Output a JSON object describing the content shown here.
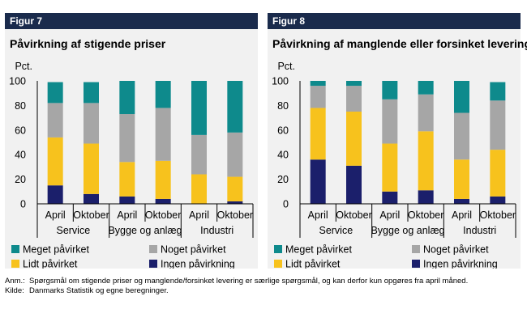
{
  "chart_data": [
    {
      "type": "bar",
      "stacked": true,
      "figure_label": "Figur 7",
      "title": "Påvirkning af stigende priser",
      "ylabel": "Pct.",
      "ylim": [
        0,
        100
      ],
      "yticks": [
        0,
        20,
        40,
        60,
        80,
        100
      ],
      "categories": [
        "April",
        "Oktober",
        "April",
        "Oktober",
        "April",
        "Oktober"
      ],
      "groups": [
        "Service",
        "Bygge og anlæg",
        "Industri"
      ],
      "series": [
        {
          "name": "Ingen påvirkning",
          "color": "#1b1f6b",
          "values": [
            15,
            8,
            6,
            4,
            0,
            2
          ]
        },
        {
          "name": "Lidt påvirket",
          "color": "#f7c21d",
          "values": [
            39,
            41,
            28,
            31,
            24,
            20
          ]
        },
        {
          "name": "Noget påvirket",
          "color": "#a6a6a6",
          "values": [
            28,
            33,
            39,
            43,
            32,
            36
          ]
        },
        {
          "name": "Meget påvirket",
          "color": "#0e8a8c",
          "values": [
            17,
            17,
            27,
            22,
            44,
            42
          ]
        }
      ],
      "legend": [
        "Meget påvirket",
        "Noget påvirket",
        "Lidt påvirket",
        "Ingen påvirkning"
      ]
    },
    {
      "type": "bar",
      "stacked": true,
      "figure_label": "Figur 8",
      "title": "Påvirkning af manglende eller forsinket levering",
      "ylabel": "Pct.",
      "ylim": [
        0,
        100
      ],
      "yticks": [
        0,
        20,
        40,
        60,
        80,
        100
      ],
      "categories": [
        "April",
        "Oktober",
        "April",
        "Oktober",
        "April",
        "Oktober"
      ],
      "groups": [
        "Service",
        "Bygge og anlæg",
        "Industri"
      ],
      "series": [
        {
          "name": "Ingen påvirkning",
          "color": "#1b1f6b",
          "values": [
            36,
            31,
            10,
            11,
            4,
            6
          ]
        },
        {
          "name": "Lidt påvirket",
          "color": "#f7c21d",
          "values": [
            42,
            44,
            39,
            48,
            32,
            38
          ]
        },
        {
          "name": "Noget påvirket",
          "color": "#a6a6a6",
          "values": [
            18,
            21,
            36,
            30,
            38,
            40
          ]
        },
        {
          "name": "Meget påvirket",
          "color": "#0e8a8c",
          "values": [
            4,
            4,
            15,
            11,
            26,
            15
          ]
        }
      ],
      "legend": [
        "Meget påvirket",
        "Noget påvirket",
        "Lidt påvirket",
        "Ingen påvirkning"
      ]
    }
  ],
  "notes": {
    "anm_label": "Anm.:",
    "anm_text": "Spørgsmål om stigende priser og manglende/forsinket levering er særlige spørgsmål, og kan derfor kun opgøres fra april måned.",
    "kilde_label": "Kilde:",
    "kilde_text": "Danmarks Statistik og egne beregninger."
  }
}
